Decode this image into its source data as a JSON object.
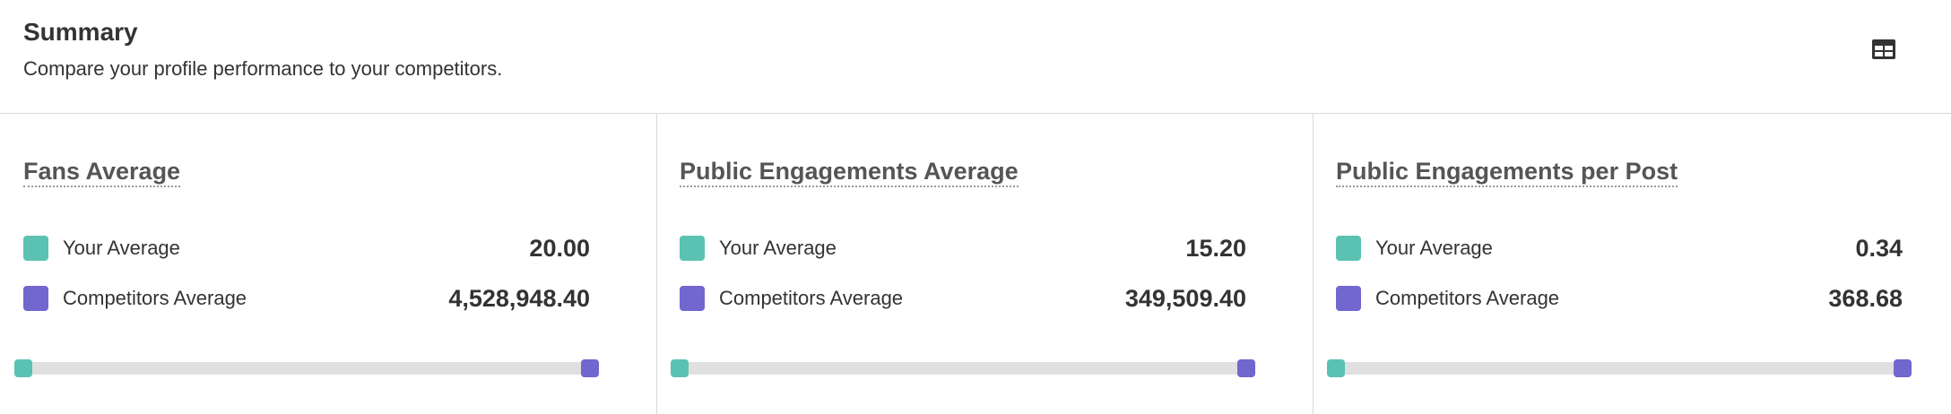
{
  "header": {
    "title": "Summary",
    "subtitle": "Compare your profile performance to your competitors."
  },
  "cards": [
    {
      "title": "Fans Average",
      "rows": [
        {
          "label": "Your Average",
          "value": "20.00"
        },
        {
          "label": "Competitors Average",
          "value": "4,528,948.40"
        }
      ]
    },
    {
      "title": "Public Engagements Average",
      "rows": [
        {
          "label": "Your Average",
          "value": "15.20"
        },
        {
          "label": "Competitors Average",
          "value": "349,509.40"
        }
      ]
    },
    {
      "title": "Public Engagements per Post",
      "rows": [
        {
          "label": "Your Average",
          "value": "0.34"
        },
        {
          "label": "Competitors Average",
          "value": "368.68"
        }
      ]
    }
  ]
}
